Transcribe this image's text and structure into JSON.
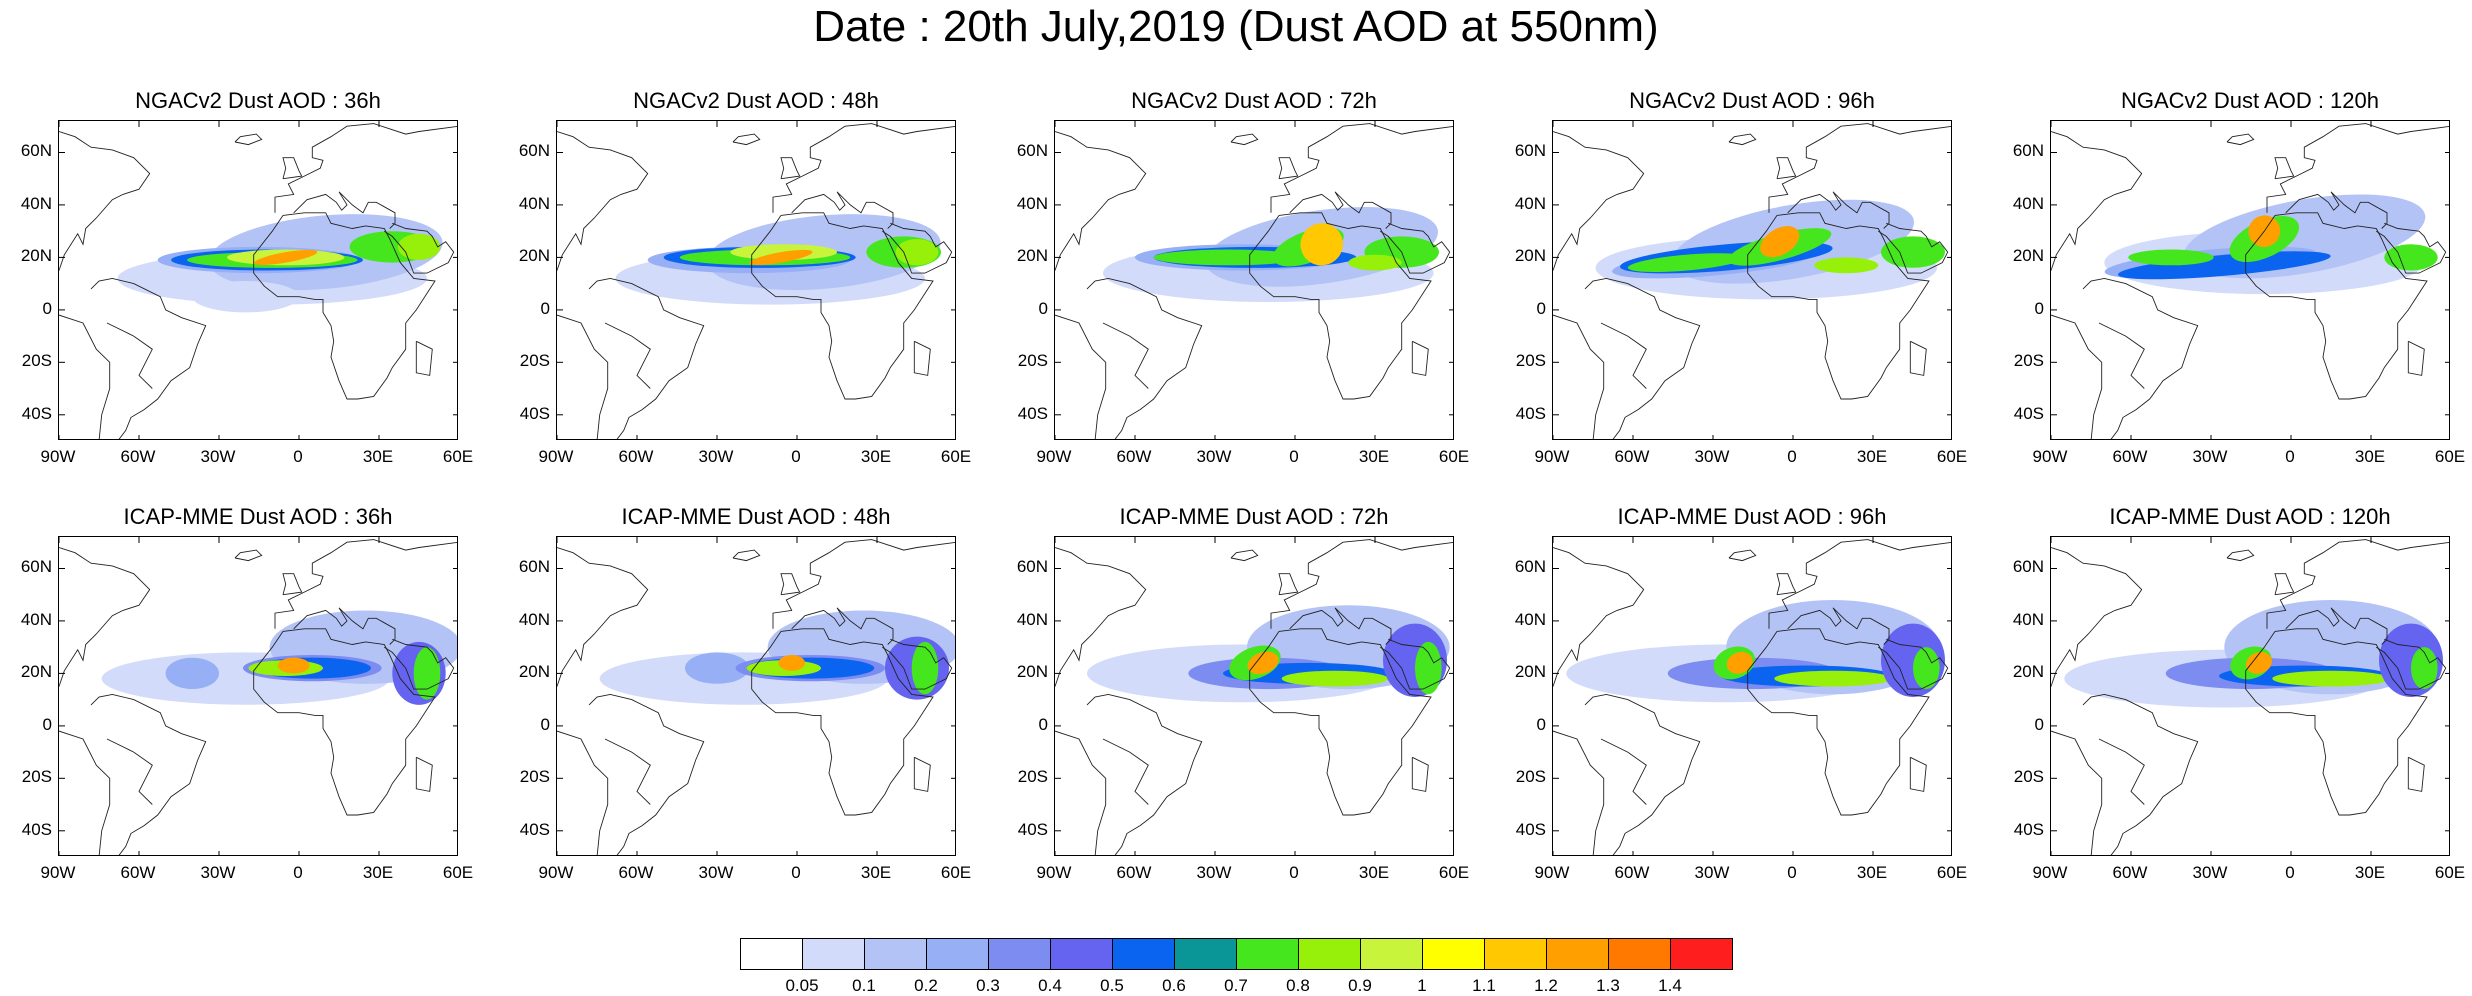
{
  "title": "Date : 20th July,2019 (Dust AOD at 550nm)",
  "panels": [
    {
      "title": "NGACv2 Dust AOD : 36h",
      "model": "NGACv2",
      "lead": "36h"
    },
    {
      "title": "NGACv2 Dust AOD : 48h",
      "model": "NGACv2",
      "lead": "48h"
    },
    {
      "title": "NGACv2 Dust AOD : 72h",
      "model": "NGACv2",
      "lead": "72h"
    },
    {
      "title": "NGACv2 Dust AOD : 96h",
      "model": "NGACv2",
      "lead": "96h"
    },
    {
      "title": "NGACv2 Dust AOD : 120h",
      "model": "NGACv2",
      "lead": "120h"
    },
    {
      "title": "ICAP-MME Dust AOD : 36h",
      "model": "ICAP-MME",
      "lead": "36h"
    },
    {
      "title": "ICAP-MME Dust AOD : 48h",
      "model": "ICAP-MME",
      "lead": "48h"
    },
    {
      "title": "ICAP-MME Dust AOD : 72h",
      "model": "ICAP-MME",
      "lead": "72h"
    },
    {
      "title": "ICAP-MME Dust AOD : 96h",
      "model": "ICAP-MME",
      "lead": "96h"
    },
    {
      "title": "ICAP-MME Dust AOD : 120h",
      "model": "ICAP-MME",
      "lead": "120h"
    }
  ],
  "map_extent": {
    "lon_min": -90,
    "lon_max": 60,
    "lat_min": -50,
    "lat_max": 72
  },
  "lat_ticks": [
    {
      "label": "60N",
      "lat": 60
    },
    {
      "label": "40N",
      "lat": 40
    },
    {
      "label": "20N",
      "lat": 20
    },
    {
      "label": "0",
      "lat": 0
    },
    {
      "label": "20S",
      "lat": -20
    },
    {
      "label": "40S",
      "lat": -40
    }
  ],
  "lon_ticks": [
    {
      "label": "90W",
      "lon": -90
    },
    {
      "label": "60W",
      "lon": -60
    },
    {
      "label": "30W",
      "lon": -30
    },
    {
      "label": "0",
      "lon": 0
    },
    {
      "label": "30E",
      "lon": 30
    },
    {
      "label": "60E",
      "lon": 60
    }
  ],
  "colorbar": {
    "labels": [
      "0.05",
      "0.1",
      "0.2",
      "0.3",
      "0.4",
      "0.5",
      "0.6",
      "0.7",
      "0.8",
      "0.9",
      "1",
      "1.1",
      "1.2",
      "1.3",
      "1.4"
    ],
    "colors": [
      "#ffffff",
      "#d2dcfa",
      "#b4c3f5",
      "#96aff5",
      "#7d8cf0",
      "#6464f0",
      "#0a64f0",
      "#0a9696",
      "#46e61e",
      "#96f00a",
      "#c8f53c",
      "#ffff00",
      "#ffc800",
      "#ffa000",
      "#ff7800",
      "#ff1e1e"
    ]
  }
}
